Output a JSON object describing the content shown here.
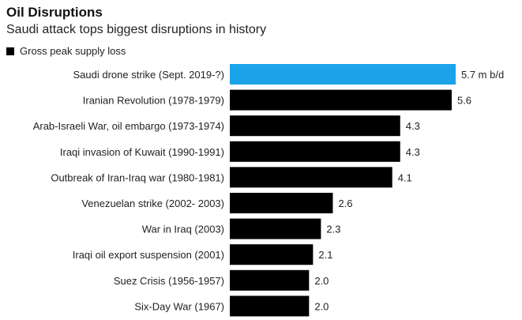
{
  "chart_data": {
    "type": "bar",
    "orientation": "horizontal",
    "title": "Oil Disruptions",
    "subtitle": "Saudi attack tops biggest disruptions in history",
    "legend": [
      {
        "label": "Gross peak supply loss",
        "color": "#000000"
      }
    ],
    "categories": [
      "Saudi drone strike (Sept. 2019-?)",
      "Iranian Revolution (1978-1979)",
      "Arab-Israeli War, oil embargo (1973-1974)",
      "Iraqi invasion of Kuwait (1990-1991)",
      "Outbreak of Iran-Iraq war (1980-1981)",
      "Venezuelan strike (2002- 2003)",
      "War in Iraq (2003)",
      "Iraqi oil export suspension (2001)",
      "Suez Crisis (1956-1957)",
      "Six-Day War (1967)"
    ],
    "values": [
      5.7,
      5.6,
      4.3,
      4.3,
      4.1,
      2.6,
      2.3,
      2.1,
      2.0,
      2.0
    ],
    "value_labels": [
      "5.7 m b/d",
      "5.6",
      "4.3",
      "4.3",
      "4.1",
      "2.6",
      "2.3",
      "2.1",
      "2.0",
      "2.0"
    ],
    "highlight_index": 0,
    "colors": {
      "bar": "#000000",
      "highlight": "#1aa3e8"
    },
    "xlim": [
      0,
      5.7
    ]
  }
}
